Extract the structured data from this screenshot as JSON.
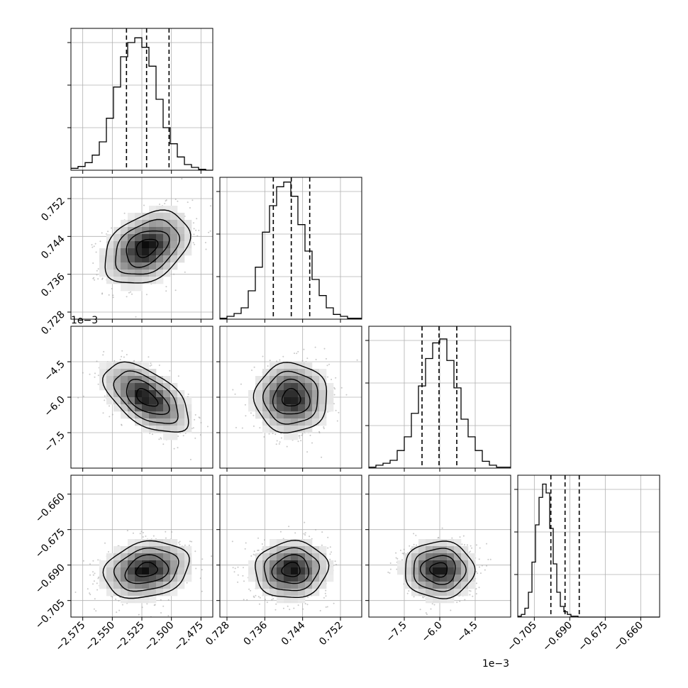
{
  "chart_data": {
    "type": "corner",
    "grid": true,
    "parameters": [
      {
        "range": [
          -2.585,
          -2.465
        ],
        "ticks": [
          -2.575,
          -2.55,
          -2.525,
          -2.5,
          -2.475
        ],
        "tick_labels": [
          "−2.575",
          "−2.550",
          "−2.525",
          "−2.500",
          "−2.475"
        ],
        "offset_text": "",
        "quantiles": [
          -2.538,
          -2.521,
          -2.502
        ],
        "histogram": {
          "edges_start": -2.585,
          "bin_width": 0.006,
          "counts": [
            2,
            4,
            8,
            16,
            30,
            55,
            88,
            120,
            135,
            140,
            130,
            110,
            75,
            45,
            28,
            14,
            6,
            3,
            1,
            0
          ]
        },
        "hist_ymax": 150
      },
      {
        "range": [
          0.7265,
          0.7565
        ],
        "ticks": [
          0.728,
          0.736,
          0.744,
          0.752
        ],
        "tick_labels": [
          "0.728",
          "0.736",
          "0.744",
          "0.752"
        ],
        "offset_text": "",
        "quantiles": [
          0.7378,
          0.7416,
          0.7455
        ],
        "histogram": {
          "edges_start": 0.7265,
          "bin_width": 0.0015,
          "counts": [
            1,
            3,
            6,
            12,
            30,
            55,
            92,
            120,
            140,
            145,
            130,
            100,
            72,
            42,
            25,
            12,
            5,
            3,
            1,
            1
          ]
        },
        "hist_ymax": 150
      },
      {
        "range": [
          -9.0,
          -3.0
        ],
        "ticks": [
          -7.5,
          -6.0,
          -4.5
        ],
        "tick_labels": [
          "−7.5",
          "−6.0",
          "−4.5"
        ],
        "offset_text": "1e−3",
        "quantiles": [
          -6.75,
          -6.03,
          -5.28
        ],
        "histogram": {
          "edges_start": -9.0,
          "bin_width": 0.3,
          "counts": [
            1,
            3,
            5,
            8,
            18,
            32,
            56,
            84,
            112,
            128,
            132,
            110,
            82,
            50,
            32,
            18,
            7,
            3,
            1,
            1
          ]
        },
        "hist_ymax": 145
      },
      {
        "range": [
          -0.712,
          -0.652
        ],
        "ticks": [
          -0.705,
          -0.69,
          -0.675,
          -0.66
        ],
        "tick_labels": [
          "−0.705",
          "−0.690",
          "−0.675",
          "−0.660"
        ],
        "offset_text": "",
        "quantiles": [
          -0.698,
          -0.692,
          -0.686
        ],
        "histogram": {
          "edges_start": -0.712,
          "bin_width": 0.0015,
          "counts": [
            1,
            3,
            10,
            28,
            62,
            104,
            135,
            150,
            140,
            100,
            60,
            28,
            12,
            6,
            3,
            1,
            1,
            0,
            0,
            0,
            0,
            0,
            0,
            0,
            0,
            0,
            0,
            0,
            0,
            0,
            0,
            0,
            0,
            0,
            0,
            0,
            0,
            0,
            0,
            0
          ]
        },
        "hist_ymax": 160
      }
    ],
    "correlations": [
      {
        "row": 1,
        "col": 0,
        "rho": 0.35
      },
      {
        "row": 2,
        "col": 0,
        "rho": -0.55
      },
      {
        "row": 2,
        "col": 1,
        "rho": 0.0
      },
      {
        "row": 3,
        "col": 0,
        "rho": 0.2
      },
      {
        "row": 3,
        "col": 1,
        "rho": 0.05
      },
      {
        "row": 3,
        "col": 2,
        "rho": 0.0
      }
    ],
    "contour_levels_sigma": [
      0.5,
      1.0,
      1.5,
      2.0
    ],
    "colors": {
      "line": "#000000",
      "grid": "#b0b0b0",
      "points": "#9a9a9a"
    }
  }
}
